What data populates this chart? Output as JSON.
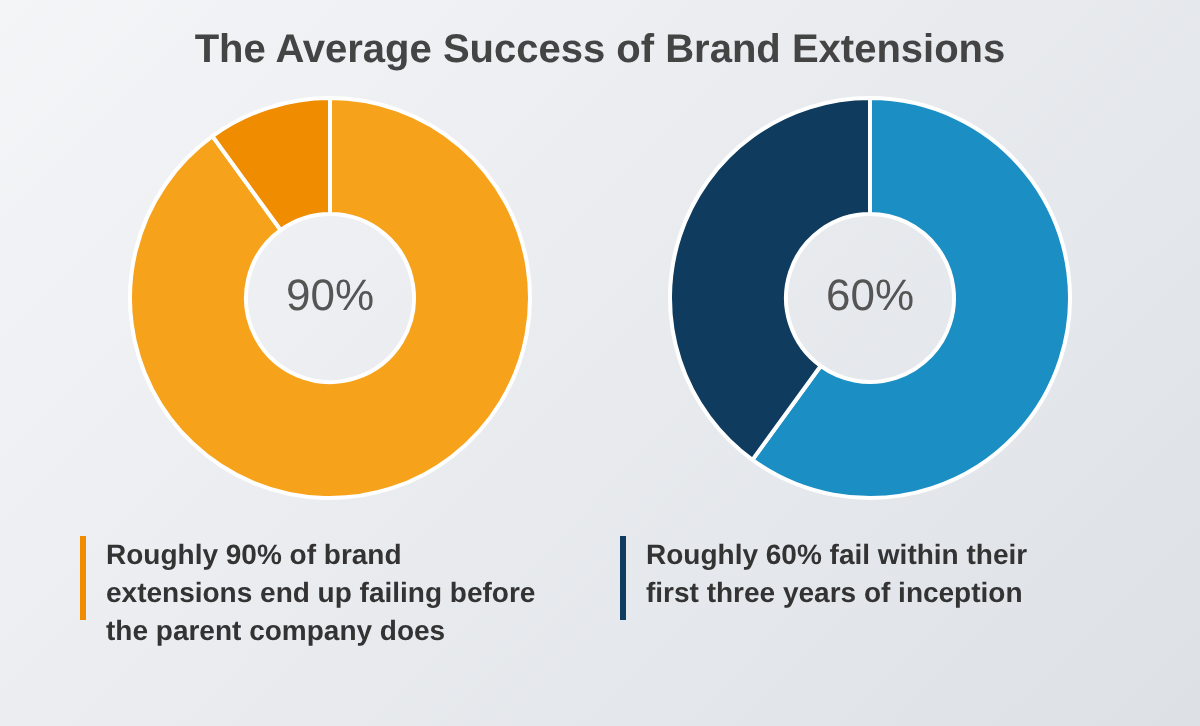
{
  "chart_data": [
    {
      "type": "donut",
      "title": "The Average Success of Brand Extensions",
      "categories": [
        null,
        null
      ],
      "values": [
        90,
        10
      ],
      "colors": [
        "#f7a21b",
        "#f08c00"
      ],
      "value_labels": [
        "90%",
        null
      ],
      "annotations": [
        "Roughly 90% of brand extensions end up failing before the parent company does"
      ]
    },
    {
      "type": "donut",
      "categories": [
        null,
        null
      ],
      "values": [
        60,
        40
      ],
      "colors": [
        "#1b8ec4",
        "#0e3b5e"
      ],
      "value_labels": [
        "60%",
        null
      ],
      "annotations": [
        "Roughly 60% fail within their first three years of inception"
      ]
    }
  ]
}
